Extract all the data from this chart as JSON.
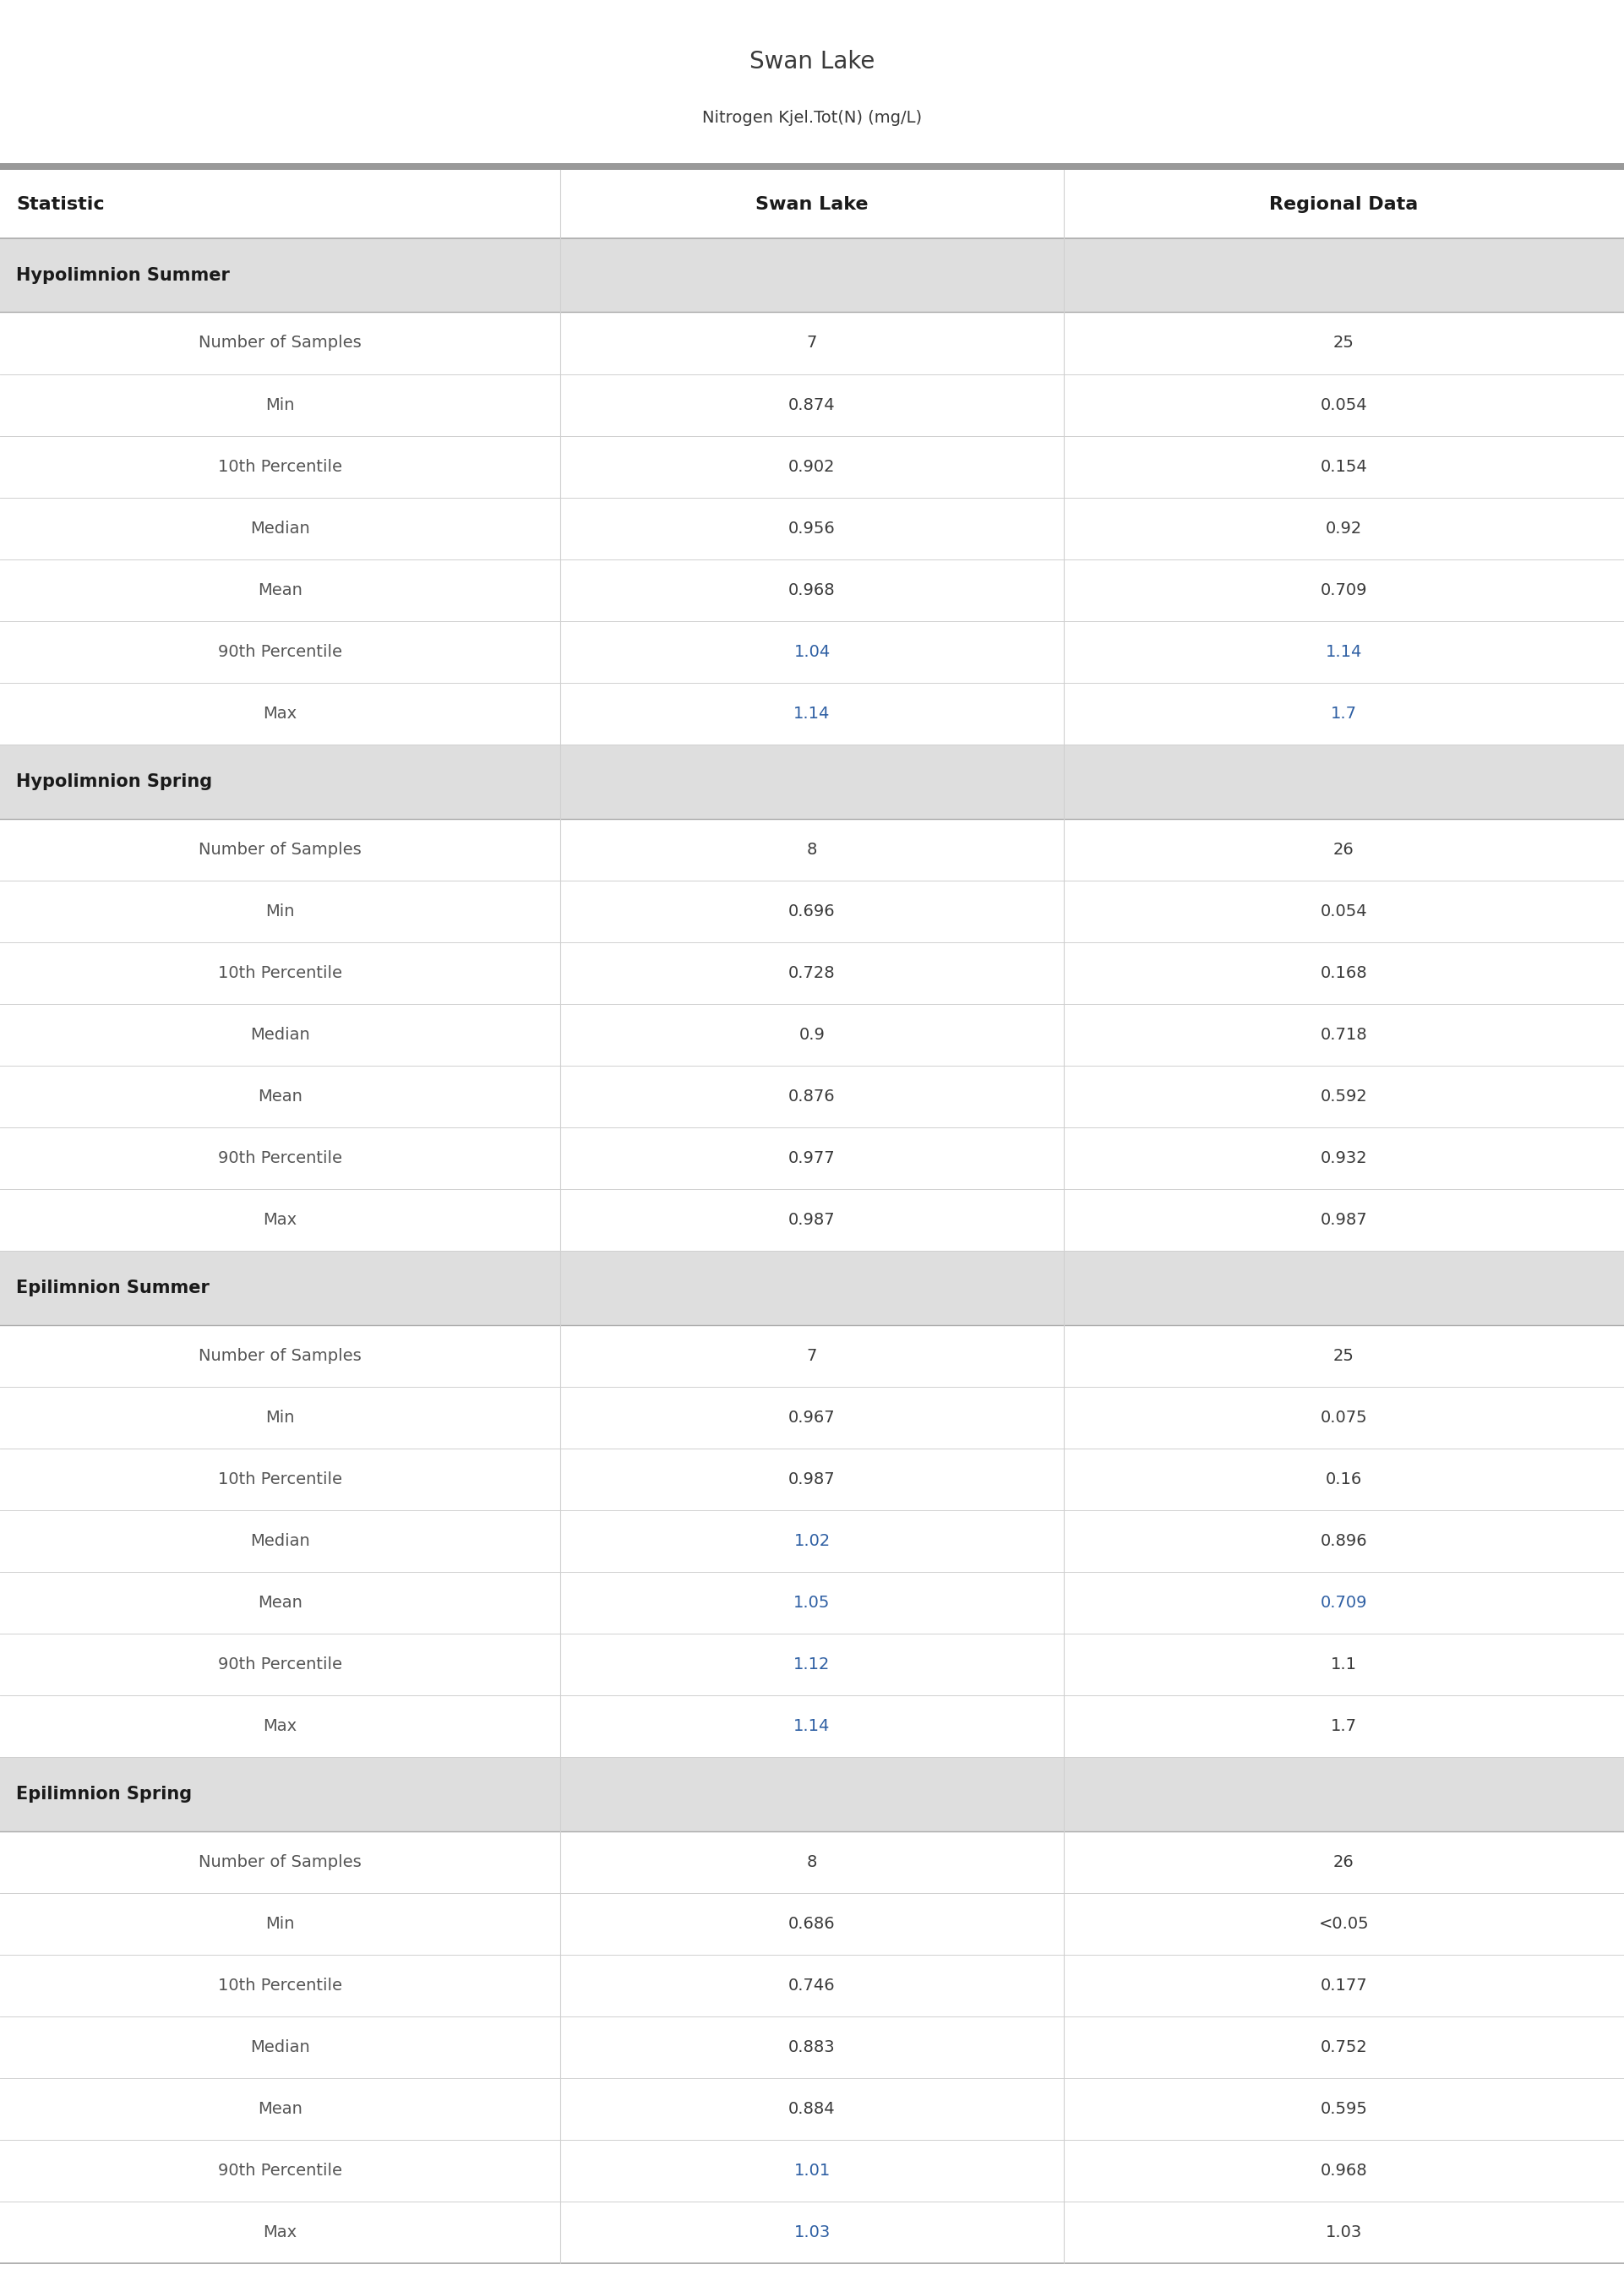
{
  "title": "Swan Lake",
  "subtitle": "Nitrogen Kjel.Tot(N) (mg/L)",
  "col_headers": [
    "Statistic",
    "Swan Lake",
    "Regional Data"
  ],
  "sections": [
    {
      "name": "Hypolimnion Summer",
      "rows": [
        [
          "Number of Samples",
          "7",
          "25"
        ],
        [
          "Min",
          "0.874",
          "0.054"
        ],
        [
          "10th Percentile",
          "0.902",
          "0.154"
        ],
        [
          "Median",
          "0.956",
          "0.92"
        ],
        [
          "Mean",
          "0.968",
          "0.709"
        ],
        [
          "90th Percentile",
          "1.04",
          "1.14"
        ],
        [
          "Max",
          "1.14",
          "1.7"
        ]
      ]
    },
    {
      "name": "Hypolimnion Spring",
      "rows": [
        [
          "Number of Samples",
          "8",
          "26"
        ],
        [
          "Min",
          "0.696",
          "0.054"
        ],
        [
          "10th Percentile",
          "0.728",
          "0.168"
        ],
        [
          "Median",
          "0.9",
          "0.718"
        ],
        [
          "Mean",
          "0.876",
          "0.592"
        ],
        [
          "90th Percentile",
          "0.977",
          "0.932"
        ],
        [
          "Max",
          "0.987",
          "0.987"
        ]
      ]
    },
    {
      "name": "Epilimnion Summer",
      "rows": [
        [
          "Number of Samples",
          "7",
          "25"
        ],
        [
          "Min",
          "0.967",
          "0.075"
        ],
        [
          "10th Percentile",
          "0.987",
          "0.16"
        ],
        [
          "Median",
          "1.02",
          "0.896"
        ],
        [
          "Mean",
          "1.05",
          "0.709"
        ],
        [
          "90th Percentile",
          "1.12",
          "1.1"
        ],
        [
          "Max",
          "1.14",
          "1.7"
        ]
      ]
    },
    {
      "name": "Epilimnion Spring",
      "rows": [
        [
          "Number of Samples",
          "8",
          "26"
        ],
        [
          "Min",
          "0.686",
          "<0.05"
        ],
        [
          "10th Percentile",
          "0.746",
          "0.177"
        ],
        [
          "Median",
          "0.883",
          "0.752"
        ],
        [
          "Mean",
          "0.884",
          "0.595"
        ],
        [
          "90th Percentile",
          "1.01",
          "0.968"
        ],
        [
          "Max",
          "1.03",
          "1.03"
        ]
      ]
    }
  ],
  "highlighted_values": {
    "Hypolimnion Summer": {
      "90th Percentile": [
        1,
        2
      ],
      "Max": [
        1,
        2
      ]
    },
    "Hypolimnion Spring": {},
    "Epilimnion Summer": {
      "Median": [
        1
      ],
      "Mean": [
        1,
        2
      ],
      "90th Percentile": [
        1
      ],
      "Max": [
        1
      ]
    },
    "Epilimnion Spring": {
      "90th Percentile": [
        1
      ],
      "Max": [
        1
      ]
    }
  },
  "title_color": "#3a3a3a",
  "subtitle_color": "#3a3a3a",
  "header_text_color": "#1a1a1a",
  "section_header_bg": "#dedede",
  "section_header_text_color": "#1a1a1a",
  "row_bg_white": "#ffffff",
  "highlight_color": "#2e5fa3",
  "normal_value_color": "#3a3a3a",
  "stat_text_color": "#555555",
  "line_color": "#d0d0d0",
  "header_line_color": "#aaaaaa",
  "top_bar_color": "#999999",
  "col_splits": [
    0.345,
    0.655
  ],
  "title_fontsize": 20,
  "subtitle_fontsize": 14,
  "header_fontsize": 16,
  "section_fontsize": 15,
  "data_fontsize": 14
}
